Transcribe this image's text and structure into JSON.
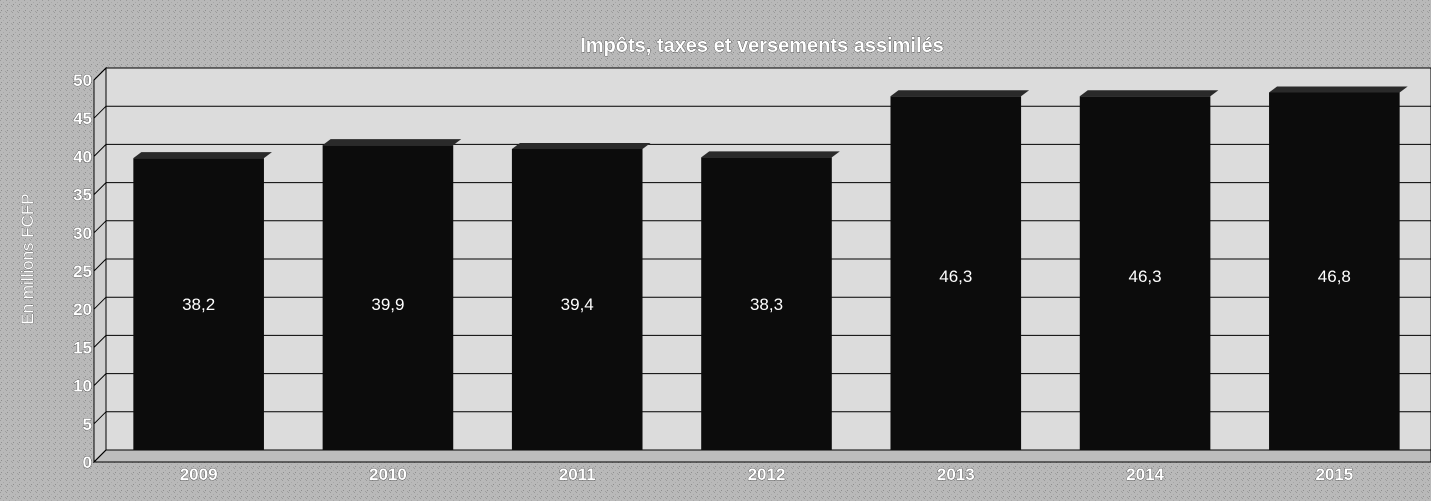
{
  "chart_data": {
    "type": "bar",
    "title": "Impôts, taxes et versements assimilés",
    "ylabel": "En millions FCFP",
    "xlabel": "",
    "categories": [
      "2009",
      "2010",
      "2011",
      "2012",
      "2013",
      "2014",
      "2015"
    ],
    "values": [
      38.2,
      39.9,
      39.4,
      38.3,
      46.3,
      46.3,
      46.8
    ],
    "data_labels": [
      "38,2",
      "39,9",
      "39,4",
      "38,3",
      "46,3",
      "46,3",
      "46,8"
    ],
    "ylim": [
      0,
      50
    ],
    "yticks": [
      0,
      5,
      10,
      15,
      20,
      25,
      30,
      35,
      40,
      45,
      50
    ],
    "grid": true,
    "legend": "none",
    "colors": {
      "bar": "#0c0c0c",
      "plot_background": "#dcdcdc",
      "page_background": "#b9b9b9",
      "gridline": "#000000",
      "text": "#ffffff"
    }
  }
}
